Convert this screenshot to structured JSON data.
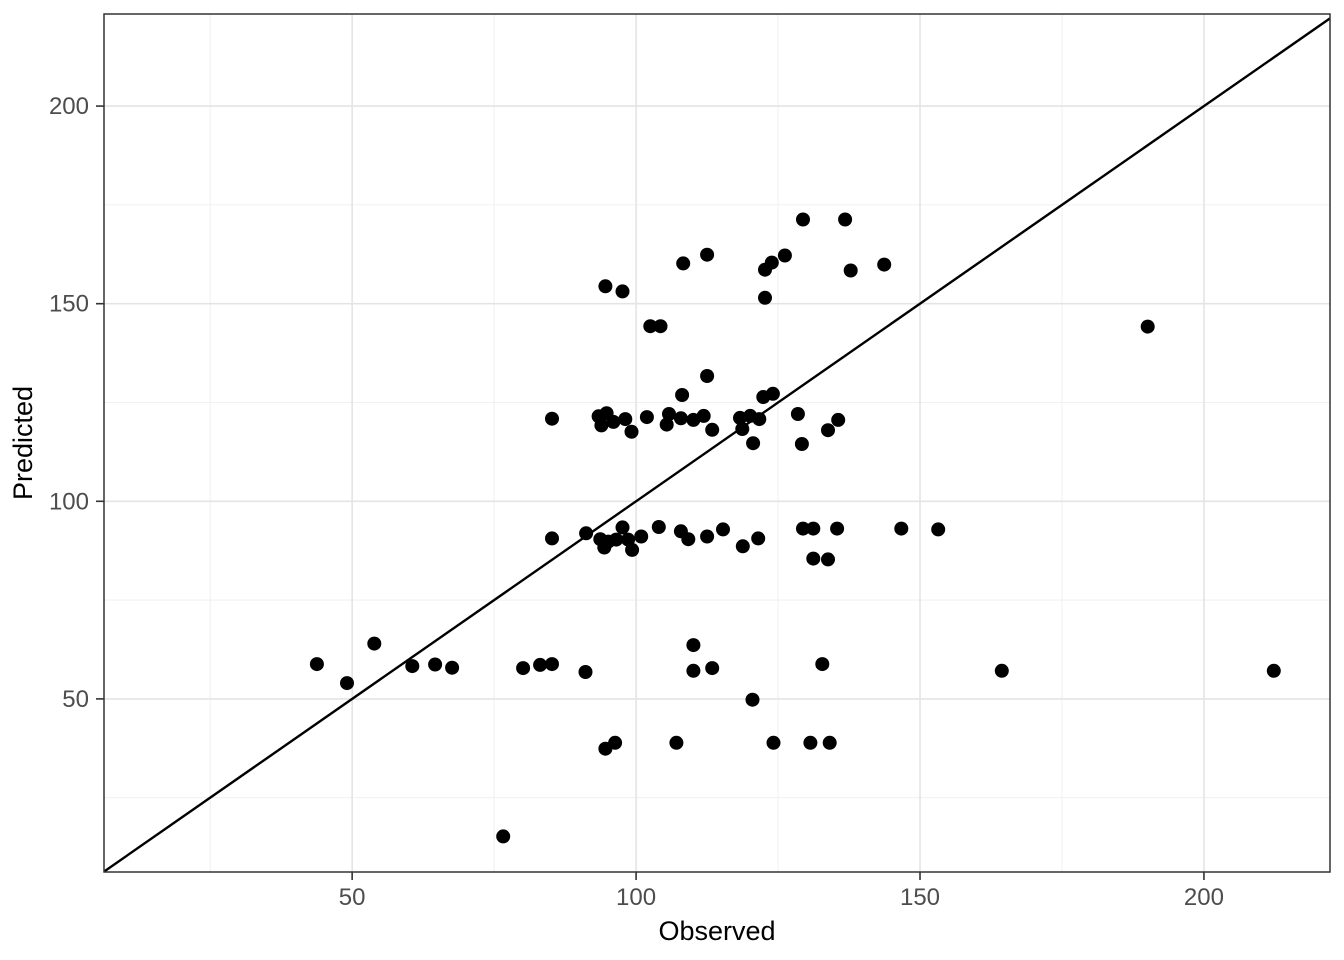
{
  "chart_data": {
    "type": "scatter",
    "title": "",
    "xlabel": "Observed",
    "ylabel": "Predicted",
    "legend": "none",
    "grid": true,
    "x_ticks": [
      50,
      100,
      150,
      200
    ],
    "y_ticks": [
      50,
      100,
      150,
      200
    ],
    "x_minor_ticks": [
      25,
      75,
      125,
      175
    ],
    "y_minor_ticks": [
      25,
      75,
      125,
      175
    ],
    "x_range": [
      6.3,
      222.2
    ],
    "y_range": [
      6.2,
      223.3
    ],
    "reference_line": {
      "type": "identity",
      "slope": 1,
      "intercept": 0
    },
    "points": [
      [
        94.6,
        154.4
      ],
      [
        97.6,
        153.1
      ],
      [
        129.4,
        171.3
      ],
      [
        136.8,
        171.3
      ],
      [
        108.3,
        160.2
      ],
      [
        112.5,
        162.4
      ],
      [
        122.7,
        158.6
      ],
      [
        123.9,
        160.4
      ],
      [
        126.2,
        162.2
      ],
      [
        137.8,
        158.4
      ],
      [
        143.7,
        159.9
      ],
      [
        122.7,
        151.5
      ],
      [
        102.5,
        144.3
      ],
      [
        104.3,
        144.3
      ],
      [
        190.1,
        144.2
      ],
      [
        112.5,
        131.7
      ],
      [
        108.1,
        126.9
      ],
      [
        122.4,
        126.4
      ],
      [
        124.1,
        127.2
      ],
      [
        85.2,
        120.9
      ],
      [
        93.4,
        121.5
      ],
      [
        94.8,
        122.3
      ],
      [
        93.9,
        119.2
      ],
      [
        96.0,
        120.1
      ],
      [
        98.1,
        120.8
      ],
      [
        99.2,
        117.6
      ],
      [
        101.9,
        121.3
      ],
      [
        105.8,
        122.1
      ],
      [
        105.4,
        119.4
      ],
      [
        107.9,
        121.0
      ],
      [
        110.1,
        120.6
      ],
      [
        111.9,
        121.6
      ],
      [
        113.4,
        118.1
      ],
      [
        118.3,
        121.1
      ],
      [
        120.1,
        121.6
      ],
      [
        121.7,
        120.8
      ],
      [
        118.7,
        118.3
      ],
      [
        120.6,
        114.7
      ],
      [
        128.5,
        122.1
      ],
      [
        133.8,
        118.0
      ],
      [
        135.6,
        120.6
      ],
      [
        129.2,
        114.5
      ],
      [
        85.2,
        90.6
      ],
      [
        91.2,
        91.9
      ],
      [
        93.7,
        90.4
      ],
      [
        95.1,
        89.8
      ],
      [
        94.4,
        88.3
      ],
      [
        96.5,
        90.3
      ],
      [
        97.6,
        93.4
      ],
      [
        98.6,
        90.3
      ],
      [
        99.3,
        87.7
      ],
      [
        100.9,
        91.1
      ],
      [
        104.0,
        93.5
      ],
      [
        107.9,
        92.4
      ],
      [
        109.2,
        90.4
      ],
      [
        112.5,
        91.1
      ],
      [
        115.3,
        92.9
      ],
      [
        118.8,
        88.6
      ],
      [
        121.5,
        90.6
      ],
      [
        129.4,
        93.1
      ],
      [
        131.2,
        93.1
      ],
      [
        135.4,
        93.1
      ],
      [
        146.7,
        93.1
      ],
      [
        153.2,
        92.9
      ],
      [
        131.2,
        85.5
      ],
      [
        133.8,
        85.3
      ],
      [
        43.8,
        58.8
      ],
      [
        49.1,
        54.0
      ],
      [
        53.9,
        64.0
      ],
      [
        60.6,
        58.3
      ],
      [
        64.6,
        58.7
      ],
      [
        67.6,
        57.9
      ],
      [
        80.1,
        57.8
      ],
      [
        83.1,
        58.6
      ],
      [
        85.2,
        58.8
      ],
      [
        91.1,
        56.8
      ],
      [
        110.1,
        63.6
      ],
      [
        110.1,
        57.1
      ],
      [
        113.4,
        57.8
      ],
      [
        132.8,
        58.8
      ],
      [
        164.4,
        57.1
      ],
      [
        212.3,
        57.1
      ],
      [
        120.5,
        49.8
      ],
      [
        94.6,
        37.4
      ],
      [
        96.3,
        38.9
      ],
      [
        107.1,
        38.9
      ],
      [
        124.2,
        38.9
      ],
      [
        130.7,
        38.9
      ],
      [
        134.1,
        38.9
      ],
      [
        76.6,
        15.2
      ]
    ],
    "styles": {
      "point_color": "#000000",
      "reference_line_color": "#000000",
      "grid_major_color": "#e4e4e4",
      "grid_minor_color": "#f1f1f1",
      "panel_border_color": "#333333",
      "tick_mark_color": "#333333",
      "tick_label_color": "#4d4d4d",
      "axis_title_color": "#000000",
      "background_color": "#ffffff"
    }
  }
}
